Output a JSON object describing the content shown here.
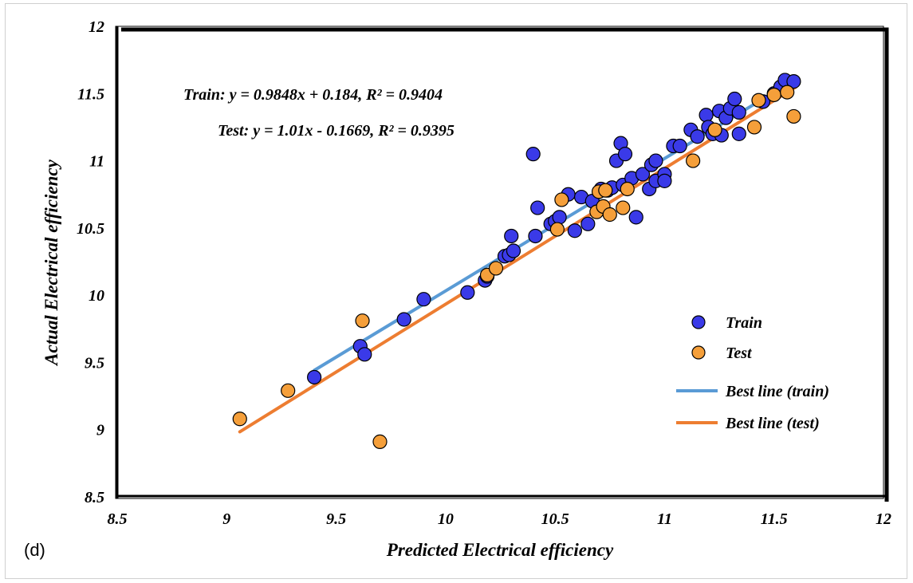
{
  "panel_label": "(d)",
  "chart_data": {
    "type": "scatter",
    "title": "",
    "xlabel": "Predicted Electrical efficiency",
    "ylabel": "Actual Electrical efficiency",
    "xlim": [
      8.5,
      12
    ],
    "ylim": [
      8.5,
      12
    ],
    "xticks": [
      "8.5",
      "9",
      "9.5",
      "10",
      "10.5",
      "11",
      "11.5",
      "12"
    ],
    "yticks": [
      "8.5",
      "9",
      "9.5",
      "10",
      "10.5",
      "11",
      "11.5",
      "12"
    ],
    "grid": false,
    "legend_position": "bottom-right",
    "annotations": [
      "Train: y = 0.9848x + 0.184, R² = 0.9404",
      "Test: y = 1.01x - 0.1669, R² = 0.9395"
    ],
    "series": [
      {
        "name": "Train",
        "kind": "scatter",
        "color": "#3a3ae8",
        "points": [
          [
            9.4,
            9.39
          ],
          [
            9.61,
            9.62
          ],
          [
            9.63,
            9.56
          ],
          [
            9.81,
            9.82
          ],
          [
            9.9,
            9.97
          ],
          [
            10.1,
            10.02
          ],
          [
            10.18,
            10.11
          ],
          [
            10.19,
            10.14
          ],
          [
            10.27,
            10.29
          ],
          [
            10.29,
            10.3
          ],
          [
            10.3,
            10.44
          ],
          [
            10.31,
            10.33
          ],
          [
            10.4,
            11.05
          ],
          [
            10.41,
            10.44
          ],
          [
            10.42,
            10.65
          ],
          [
            10.48,
            10.53
          ],
          [
            10.5,
            10.55
          ],
          [
            10.52,
            10.58
          ],
          [
            10.56,
            10.75
          ],
          [
            10.59,
            10.48
          ],
          [
            10.62,
            10.73
          ],
          [
            10.65,
            10.53
          ],
          [
            10.67,
            10.7
          ],
          [
            10.71,
            10.79
          ],
          [
            10.74,
            10.78
          ],
          [
            10.76,
            10.8
          ],
          [
            10.78,
            11.0
          ],
          [
            10.8,
            11.13
          ],
          [
            10.81,
            10.82
          ],
          [
            10.82,
            11.05
          ],
          [
            10.85,
            10.87
          ],
          [
            10.87,
            10.58
          ],
          [
            10.9,
            10.9
          ],
          [
            10.93,
            10.79
          ],
          [
            10.94,
            10.97
          ],
          [
            10.96,
            10.85
          ],
          [
            10.96,
            11.0
          ],
          [
            11.0,
            10.9
          ],
          [
            11.0,
            10.85
          ],
          [
            11.04,
            11.11
          ],
          [
            11.07,
            11.11
          ],
          [
            11.12,
            11.23
          ],
          [
            11.15,
            11.18
          ],
          [
            11.19,
            11.34
          ],
          [
            11.2,
            11.25
          ],
          [
            11.22,
            11.2
          ],
          [
            11.25,
            11.37
          ],
          [
            11.26,
            11.19
          ],
          [
            11.28,
            11.32
          ],
          [
            11.3,
            11.39
          ],
          [
            11.32,
            11.46
          ],
          [
            11.34,
            11.2
          ],
          [
            11.34,
            11.36
          ],
          [
            11.45,
            11.44
          ],
          [
            11.5,
            11.5
          ],
          [
            11.53,
            11.55
          ],
          [
            11.55,
            11.6
          ],
          [
            11.59,
            11.59
          ]
        ]
      },
      {
        "name": "Test",
        "kind": "scatter",
        "color": "#f59f3a",
        "points": [
          [
            9.06,
            9.08
          ],
          [
            9.28,
            9.29
          ],
          [
            9.62,
            9.81
          ],
          [
            9.7,
            8.91
          ],
          [
            10.19,
            10.15
          ],
          [
            10.23,
            10.2
          ],
          [
            10.51,
            10.49
          ],
          [
            10.53,
            10.71
          ],
          [
            10.69,
            10.62
          ],
          [
            10.7,
            10.77
          ],
          [
            10.72,
            10.66
          ],
          [
            10.73,
            10.78
          ],
          [
            10.75,
            10.6
          ],
          [
            10.81,
            10.65
          ],
          [
            10.83,
            10.79
          ],
          [
            11.13,
            11.0
          ],
          [
            11.23,
            11.23
          ],
          [
            11.41,
            11.25
          ],
          [
            11.43,
            11.45
          ],
          [
            11.5,
            11.49
          ],
          [
            11.56,
            11.51
          ],
          [
            11.59,
            11.33
          ]
        ]
      },
      {
        "name": "Best line (train)",
        "kind": "line",
        "color": "#5a9bd5",
        "points": [
          [
            9.4,
            9.441
          ],
          [
            11.6,
            11.608
          ]
        ]
      },
      {
        "name": "Best line (test)",
        "kind": "line",
        "color": "#ed7d31",
        "points": [
          [
            9.06,
            8.984
          ],
          [
            11.6,
            11.549
          ]
        ]
      }
    ]
  }
}
